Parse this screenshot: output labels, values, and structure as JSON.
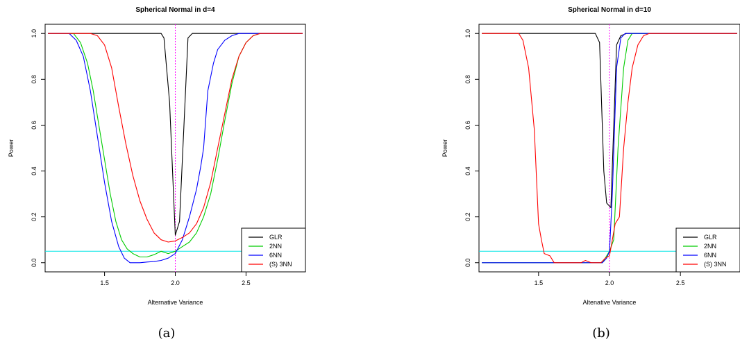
{
  "chart_data": [
    {
      "type": "line",
      "title": "Spherical Normal in d=4",
      "xlabel": "Alternative Variance",
      "ylabel": "Power",
      "caption": "(a)",
      "xlim": [
        1.08,
        2.92
      ],
      "ylim": [
        -0.04,
        1.04
      ],
      "xticks": [
        "1.5",
        "2.0",
        "2.5"
      ],
      "yticks": [
        "0.0",
        "0.2",
        "0.4",
        "0.6",
        "0.8",
        "1.0"
      ],
      "vline": {
        "x": 2.0,
        "color": "#ff00ff",
        "style": "dotted"
      },
      "hline": {
        "y": 0.05,
        "color": "#00e5e5"
      },
      "legend_position": "bottom-right",
      "series": [
        {
          "name": "GLR",
          "color": "#000000",
          "x": [
            1.1,
            1.9,
            1.92,
            1.96,
            2.0,
            2.03,
            2.09,
            2.12,
            2.9
          ],
          "y": [
            1.0,
            1.0,
            0.98,
            0.7,
            0.12,
            0.18,
            0.98,
            1.0,
            1.0
          ]
        },
        {
          "name": "2NN",
          "color": "#00cc00",
          "x": [
            1.1,
            1.28,
            1.33,
            1.38,
            1.42,
            1.46,
            1.5,
            1.54,
            1.58,
            1.62,
            1.66,
            1.7,
            1.75,
            1.8,
            1.85,
            1.9,
            1.95,
            2.0,
            2.05,
            2.1,
            2.15,
            2.2,
            2.25,
            2.3,
            2.35,
            2.4,
            2.45,
            2.5,
            2.55,
            2.6,
            2.65,
            2.9
          ],
          "y": [
            1.0,
            1.0,
            0.96,
            0.87,
            0.75,
            0.6,
            0.45,
            0.3,
            0.18,
            0.1,
            0.06,
            0.04,
            0.025,
            0.025,
            0.035,
            0.05,
            0.04,
            0.05,
            0.07,
            0.09,
            0.13,
            0.2,
            0.3,
            0.45,
            0.62,
            0.78,
            0.9,
            0.96,
            0.99,
            1.0,
            1.0,
            1.0
          ]
        },
        {
          "name": "6NN",
          "color": "#0000ff",
          "x": [
            1.1,
            1.25,
            1.3,
            1.35,
            1.4,
            1.45,
            1.5,
            1.55,
            1.6,
            1.64,
            1.68,
            1.75,
            1.8,
            1.85,
            1.9,
            1.95,
            2.0,
            2.05,
            2.1,
            2.15,
            2.18,
            2.2,
            2.23,
            2.27,
            2.3,
            2.35,
            2.4,
            2.45,
            2.5,
            2.9
          ],
          "y": [
            1.0,
            1.0,
            0.97,
            0.9,
            0.75,
            0.55,
            0.35,
            0.18,
            0.07,
            0.02,
            0.0,
            0.0,
            0.003,
            0.005,
            0.01,
            0.02,
            0.04,
            0.1,
            0.2,
            0.32,
            0.42,
            0.5,
            0.75,
            0.87,
            0.93,
            0.97,
            0.99,
            1.0,
            1.0,
            1.0
          ]
        },
        {
          "name": "(S) 3NN",
          "color": "#ff0000",
          "x": [
            1.1,
            1.4,
            1.45,
            1.5,
            1.55,
            1.6,
            1.65,
            1.7,
            1.75,
            1.8,
            1.85,
            1.9,
            1.95,
            2.0,
            2.05,
            2.1,
            2.15,
            2.2,
            2.25,
            2.3,
            2.35,
            2.4,
            2.45,
            2.5,
            2.55,
            2.6,
            2.9
          ],
          "y": [
            1.0,
            1.0,
            0.99,
            0.95,
            0.85,
            0.68,
            0.52,
            0.38,
            0.27,
            0.19,
            0.13,
            0.1,
            0.09,
            0.095,
            0.11,
            0.13,
            0.17,
            0.24,
            0.35,
            0.5,
            0.65,
            0.8,
            0.9,
            0.96,
            0.99,
            1.0,
            1.0
          ]
        }
      ]
    },
    {
      "type": "line",
      "title": "Spherical Normal in d=10",
      "xlabel": "Altenative Variance",
      "ylabel": "Power",
      "caption": "(b)",
      "xlim": [
        1.08,
        2.92
      ],
      "ylim": [
        -0.04,
        1.04
      ],
      "xticks": [
        "1.5",
        "2.0",
        "2.5"
      ],
      "yticks": [
        "0.0",
        "0.2",
        "0.4",
        "0.6",
        "0.8",
        "1.0"
      ],
      "vline": {
        "x": 2.0,
        "color": "#ff00ff",
        "style": "dotted"
      },
      "hline": {
        "y": 0.05,
        "color": "#00e5e5"
      },
      "legend_position": "bottom-right",
      "series": [
        {
          "name": "GLR",
          "color": "#000000",
          "x": [
            1.1,
            1.9,
            1.93,
            1.96,
            1.98,
            2.01,
            2.05,
            2.08,
            2.12,
            2.9
          ],
          "y": [
            1.0,
            1.0,
            0.96,
            0.4,
            0.26,
            0.24,
            0.95,
            0.99,
            1.0,
            1.0
          ]
        },
        {
          "name": "2NN",
          "color": "#00cc00",
          "x": [
            1.1,
            1.9,
            1.95,
            1.98,
            2.0,
            2.03,
            2.06,
            2.1,
            2.13,
            2.16,
            2.9
          ],
          "y": [
            0.0,
            0.0,
            0.0,
            0.03,
            0.05,
            0.1,
            0.5,
            0.85,
            0.97,
            1.0,
            1.0
          ]
        },
        {
          "name": "6NN",
          "color": "#0000ff",
          "x": [
            1.1,
            1.9,
            1.95,
            1.98,
            2.0,
            2.02,
            2.05,
            2.08,
            2.11,
            2.9
          ],
          "y": [
            0.0,
            0.0,
            0.0,
            0.02,
            0.05,
            0.3,
            0.85,
            0.98,
            1.0,
            1.0
          ]
        },
        {
          "name": "(S) 3NN",
          "color": "#ff0000",
          "x": [
            1.1,
            1.36,
            1.39,
            1.43,
            1.47,
            1.5,
            1.52,
            1.54,
            1.58,
            1.61,
            1.65,
            1.8,
            1.83,
            1.87,
            1.9,
            1.94,
            1.97,
            2.0,
            2.04,
            2.07,
            2.1,
            2.13,
            2.16,
            2.2,
            2.24,
            2.28,
            2.9
          ],
          "y": [
            1.0,
            1.0,
            0.97,
            0.85,
            0.58,
            0.17,
            0.1,
            0.04,
            0.03,
            0.0,
            0.0,
            0.0,
            0.01,
            0.0,
            0.0,
            0.0,
            0.02,
            0.03,
            0.17,
            0.2,
            0.5,
            0.7,
            0.85,
            0.95,
            0.99,
            1.0,
            1.0
          ]
        }
      ]
    }
  ]
}
